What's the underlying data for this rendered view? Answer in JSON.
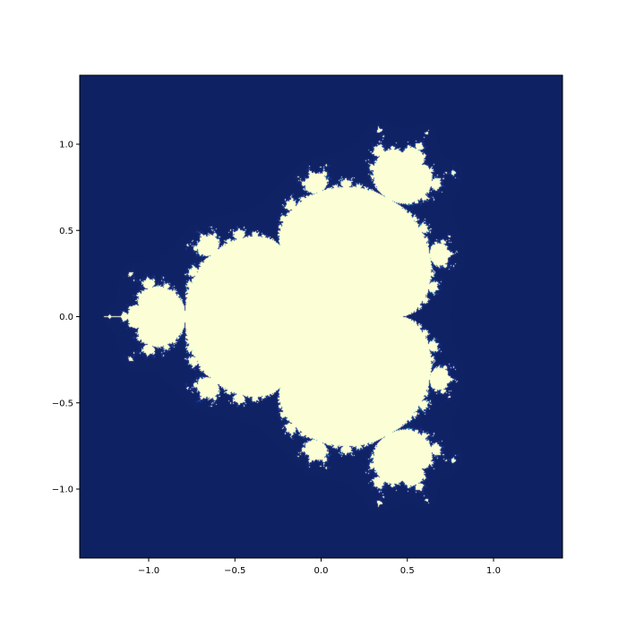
{
  "chart_data": {
    "type": "heatmap",
    "title": "",
    "xlabel": "",
    "ylabel": "",
    "xlim": [
      -1.4,
      1.4
    ],
    "ylim": [
      -1.4,
      1.4
    ],
    "grid": false,
    "x_ticks": [
      {
        "value": -1.0,
        "label": "−1.0"
      },
      {
        "value": -0.5,
        "label": "−0.5"
      },
      {
        "value": 0.0,
        "label": "0.0"
      },
      {
        "value": 0.5,
        "label": "0.5"
      },
      {
        "value": 1.0,
        "label": "1.0"
      }
    ],
    "y_ticks": [
      {
        "value": 1.0,
        "label": "1.0"
      },
      {
        "value": 0.5,
        "label": "0.5"
      },
      {
        "value": 0.0,
        "label": "0.0"
      },
      {
        "value": -0.5,
        "label": "−0.5"
      },
      {
        "value": -1.0,
        "label": "−1.0"
      }
    ],
    "colormap": "YlGnBu",
    "fractal": {
      "kind": "multibrot",
      "power": 4,
      "max_iter": 60
    },
    "colors": {
      "outside": "#0e2162",
      "inside": "#fcfed5"
    }
  }
}
